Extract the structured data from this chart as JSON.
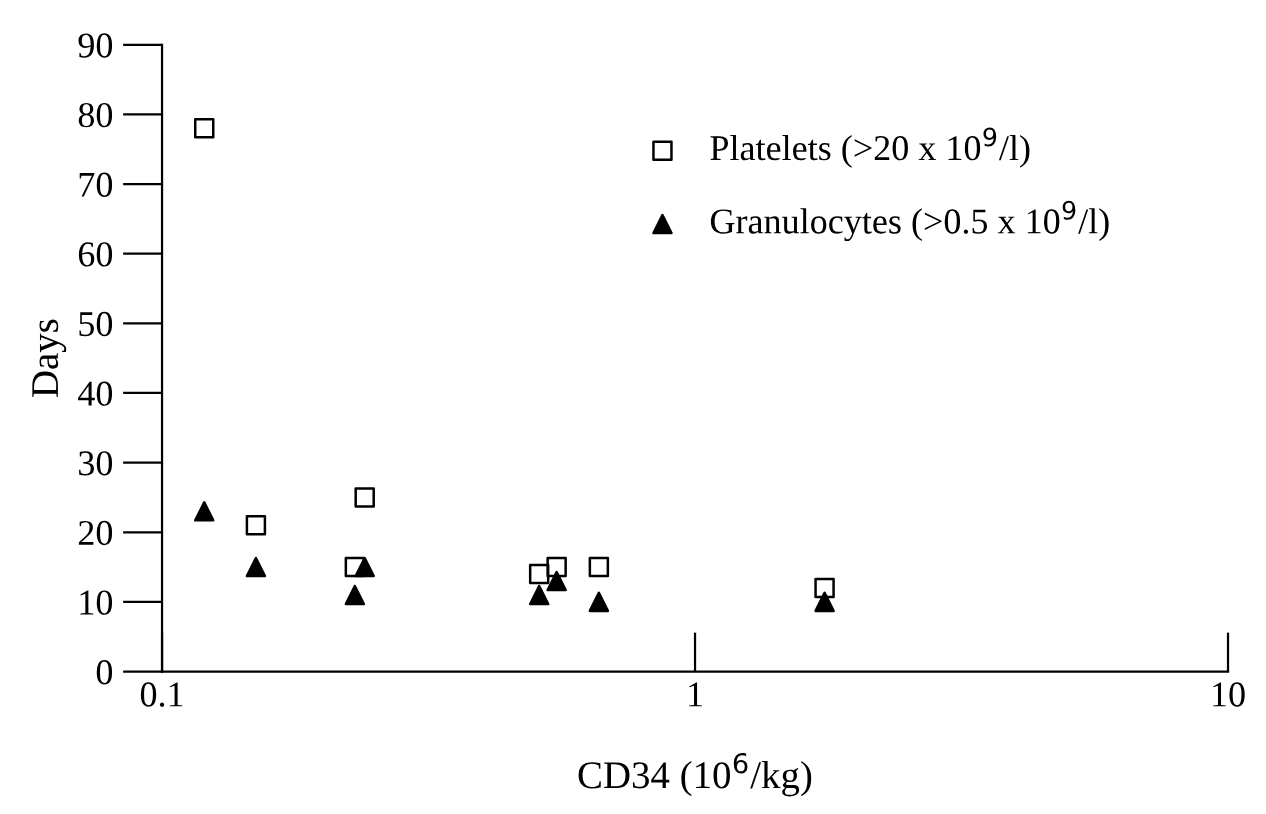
{
  "chart_data": {
    "type": "scatter",
    "xlabel": "CD34 (10$^{6}$/kg)",
    "ylabel": "Days",
    "log": "x",
    "xlim": [
      0.1,
      10
    ],
    "xticks": [
      0.1,
      1,
      10
    ],
    "ylim": [
      0,
      90
    ],
    "yticks": [
      0,
      10,
      20,
      30,
      40,
      50,
      60,
      70,
      80,
      90
    ],
    "grid": false,
    "legend": "top right",
    "series": [
      {
        "name": "Platelets (>20 x 10$^{9}$/l)",
        "color": "#000000",
        "marker": "square",
        "x": [
          0.12,
          0.15,
          0.23,
          0.24,
          0.51,
          0.55,
          0.66,
          1.75
        ],
        "values": [
          78,
          21,
          15,
          25,
          14,
          15,
          15,
          12
        ]
      },
      {
        "name": "Granulocytes (>0.5 x 10$^{9}$/l)",
        "color": "#000000",
        "marker": "triangle",
        "x": [
          0.12,
          0.15,
          0.23,
          0.24,
          0.51,
          0.55,
          0.66,
          1.75
        ],
        "values": [
          23,
          15,
          11,
          15,
          11,
          13,
          10,
          10
        ]
      }
    ]
  }
}
